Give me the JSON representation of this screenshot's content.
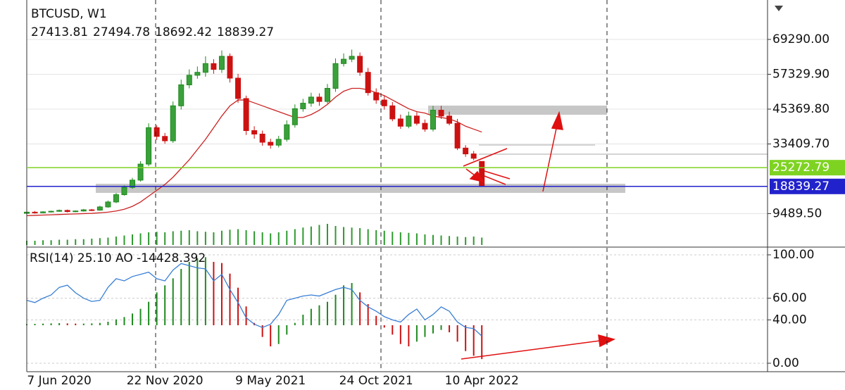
{
  "chart_data": {
    "type": "candlestick",
    "title": "BTCUSD, W1",
    "categories": [
      null,
      null,
      null,
      null,
      "7 Jun 2020",
      null,
      null,
      null,
      null,
      null,
      null,
      null,
      null,
      null,
      null,
      null,
      null,
      "22 Nov 2020",
      null,
      null,
      null,
      null,
      null,
      null,
      null,
      null,
      null,
      null,
      null,
      null,
      "9 May 2021",
      null,
      null,
      null,
      null,
      null,
      null,
      null,
      null,
      null,
      null,
      null,
      null,
      "24 Oct 2021",
      null,
      null,
      null,
      null,
      null,
      null,
      null,
      null,
      null,
      null,
      null,
      null,
      "10 Apr 2022"
    ],
    "open": [
      9600,
      10000,
      9800,
      10100,
      10300,
      10600,
      10200,
      10400,
      10800,
      10700,
      11800,
      13500,
      16000,
      18500,
      21000,
      26500,
      39000,
      36000,
      34500,
      46500,
      53700,
      57000,
      58000,
      61000,
      59000,
      63500,
      56000,
      49000,
      38000,
      36800,
      34000,
      33000,
      35000,
      40000,
      45500,
      47400,
      49500,
      48000,
      52500,
      61000,
      62500,
      63500,
      58000,
      51000,
      48500,
      46500,
      42000,
      39500,
      43000,
      40500,
      38500,
      45000,
      43000,
      40500,
      32000,
      30000,
      27413.81
    ],
    "high": [
      10300,
      10400,
      10300,
      10500,
      10900,
      10900,
      10600,
      11100,
      11100,
      12200,
      14000,
      16600,
      19200,
      21800,
      27500,
      40500,
      39800,
      37200,
      48000,
      55500,
      59000,
      60000,
      63500,
      62500,
      65500,
      64500,
      57500,
      50000,
      39500,
      38000,
      35200,
      36200,
      41500,
      47000,
      48900,
      51000,
      50800,
      54000,
      62800,
      64500,
      65800,
      64800,
      59500,
      52500,
      50000,
      47800,
      43500,
      44500,
      44300,
      41800,
      46500,
      46500,
      44500,
      42000,
      33000,
      31000,
      27494.78
    ],
    "low": [
      9300,
      9500,
      9600,
      9900,
      10100,
      9900,
      10000,
      10200,
      10400,
      10500,
      11500,
      13100,
      15700,
      18000,
      20500,
      25800,
      34800,
      33500,
      33800,
      45200,
      52500,
      55800,
      56500,
      57500,
      57800,
      54500,
      47500,
      36500,
      35200,
      32800,
      31800,
      32200,
      34200,
      39000,
      44500,
      46200,
      46500,
      47300,
      51300,
      60000,
      61500,
      56800,
      50000,
      47200,
      45200,
      41200,
      38600,
      38800,
      39800,
      37600,
      37700,
      42000,
      39800,
      31300,
      29000,
      27800,
      18692.42
    ],
    "close": [
      10000,
      9800,
      10100,
      10300,
      10600,
      10200,
      10400,
      10800,
      10700,
      11800,
      13500,
      16000,
      18500,
      21000,
      26500,
      39000,
      36000,
      34500,
      46500,
      53700,
      57000,
      58000,
      61000,
      59000,
      63500,
      56000,
      49000,
      38000,
      36800,
      34000,
      33000,
      35000,
      40000,
      45500,
      47400,
      49500,
      48000,
      52500,
      61000,
      62500,
      63500,
      58000,
      51000,
      48500,
      46500,
      42000,
      39500,
      43000,
      40500,
      38500,
      45000,
      43000,
      40500,
      32000,
      30000,
      28500,
      18839.27
    ],
    "up_color": "#1f8a1f",
    "down_color": "#cc1111",
    "ma": [
      8800,
      8900,
      9000,
      9100,
      9200,
      9300,
      9400,
      9500,
      9600,
      9800,
      10000,
      10400,
      11000,
      12000,
      13500,
      15500,
      17500,
      19500,
      22000,
      25000,
      28000,
      31500,
      35000,
      39000,
      43000,
      46500,
      48500,
      48500,
      47500,
      46500,
      45500,
      44500,
      43500,
      42500,
      42500,
      43500,
      45000,
      47000,
      49500,
      51500,
      52500,
      52500,
      52000,
      51000,
      50000,
      48500,
      47000,
      45500,
      44500,
      44000,
      43000,
      42500,
      42000,
      41000,
      39500,
      38500,
      37500
    ],
    "ma_color": "#cc2222",
    "volume": [
      8,
      8,
      9,
      9,
      10,
      10,
      11,
      11,
      12,
      13,
      14,
      16,
      18,
      20,
      22,
      24,
      25,
      24,
      26,
      27,
      28,
      26,
      25,
      24,
      27,
      29,
      30,
      28,
      26,
      24,
      22,
      24,
      27,
      30,
      33,
      35,
      38,
      40,
      36,
      34,
      33,
      32,
      30,
      28,
      27,
      25,
      24,
      23,
      22,
      20,
      19,
      18,
      17,
      16,
      15,
      16,
      14
    ],
    "volume_lim": [
      0,
      80
    ],
    "volume_color": "#2e9a2e",
    "ylim": [
      -1745,
      82820
    ],
    "yticks": [
      {
        "value": 69290,
        "label": "69290.00"
      },
      {
        "value": 57329.9,
        "label": "57329.90"
      },
      {
        "value": 45369.8,
        "label": "45369.80"
      },
      {
        "value": 33409.7,
        "label": "33409.70"
      },
      {
        "value": 9489.5,
        "label": "9489.50"
      }
    ],
    "hlines": [
      {
        "value": 25272.79,
        "color": "#7ed321"
      },
      {
        "value": 18839.27,
        "color": "#2222cc"
      }
    ],
    "grid": true,
    "indicator_title": "RSI(14) 25.10 AO -14428.392",
    "rsi": [
      58,
      56,
      60,
      63,
      70,
      72,
      65,
      60,
      57,
      58,
      70,
      78,
      76,
      80,
      82,
      84,
      78,
      76,
      86,
      92,
      90,
      88,
      87,
      76,
      82,
      68,
      56,
      42,
      36,
      33,
      36,
      45,
      58,
      60,
      62,
      63,
      62,
      65,
      68,
      70,
      68,
      58,
      52,
      48,
      43,
      40,
      38,
      45,
      50,
      40,
      45,
      52,
      48,
      38,
      33,
      32,
      25.1
    ],
    "rsi_color": "#3a7fd5",
    "rsi_lim": [
      -7.8,
      106.5
    ],
    "rsi_ticks": [
      {
        "value": 100,
        "label": "100.00"
      },
      {
        "value": 60,
        "label": "60.00"
      },
      {
        "value": 40,
        "label": "40.00"
      },
      {
        "value": 0,
        "label": "0.00"
      }
    ],
    "ao": [
      500,
      600,
      700,
      800,
      900,
      800,
      700,
      700,
      800,
      1000,
      1500,
      2500,
      3500,
      5000,
      7000,
      10000,
      14000,
      17000,
      20000,
      24000,
      27000,
      28500,
      29000,
      27000,
      26500,
      22000,
      16000,
      8000,
      1000,
      -5000,
      -9000,
      -8000,
      -4000,
      1000,
      4500,
      7000,
      8500,
      10000,
      13000,
      17000,
      18000,
      14000,
      9000,
      4000,
      -1000,
      -4000,
      -8000,
      -9000,
      -7000,
      -5000,
      -3500,
      -2000,
      -3000,
      -7000,
      -11000,
      -13000,
      -14428.392
    ],
    "ao_lim": [
      -19800,
      33000
    ]
  }
}
